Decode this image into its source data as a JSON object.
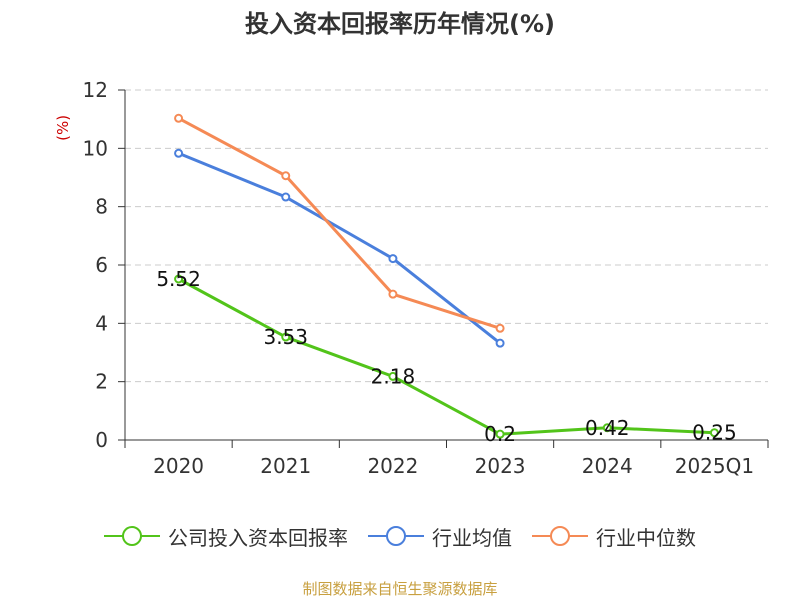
{
  "chart_data": {
    "type": "line",
    "title": "投入资本回报率历年情况(%)",
    "ylabel": "(%)",
    "categories": [
      "2020",
      "2021",
      "2022",
      "2023",
      "2024",
      "2025Q1"
    ],
    "ylim": [
      0,
      12
    ],
    "yticks": [
      0,
      2,
      4,
      6,
      8,
      10,
      12
    ],
    "grid": true,
    "legend_position": "bottom",
    "series": [
      {
        "name": "公司投入资本回报率",
        "values": [
          5.52,
          3.53,
          2.18,
          0.2,
          0.42,
          0.25
        ],
        "color": "#52c41a",
        "labels": [
          "5.52",
          "3.53",
          "2.18",
          "0.2",
          "0.42",
          "0.25"
        ]
      },
      {
        "name": "行业均值",
        "values": [
          9.83,
          8.33,
          6.22,
          3.32,
          null,
          null
        ],
        "color": "#4a7fdc"
      },
      {
        "name": "行业中位数",
        "values": [
          11.03,
          9.06,
          5.0,
          3.83,
          null,
          null
        ],
        "color": "#f58a55"
      }
    ]
  },
  "source": "制图数据来自恒生聚源数据库"
}
